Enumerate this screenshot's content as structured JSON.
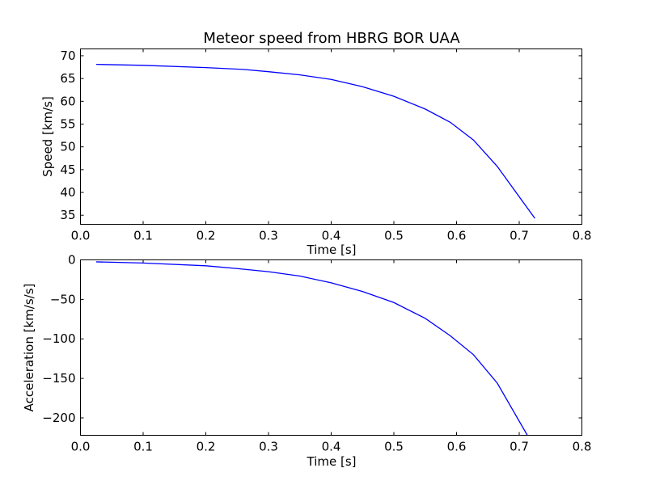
{
  "chart_data": [
    {
      "type": "line",
      "title": "Meteor speed from  HBRG BOR UAA",
      "xlabel": "Time [s]",
      "ylabel": "Speed [km/s]",
      "xlim": [
        0.0,
        0.8
      ],
      "ylim": [
        33,
        71.5
      ],
      "xticks": [
        "0.0",
        "0.1",
        "0.2",
        "0.3",
        "0.4",
        "0.5",
        "0.6",
        "0.7",
        "0.8"
      ],
      "yticks": [
        "35",
        "40",
        "45",
        "50",
        "55",
        "60",
        "65",
        "70"
      ],
      "grid": false,
      "color": "#0000ff",
      "series": [
        {
          "x": [
            0.025,
            0.1,
            0.2,
            0.26,
            0.3,
            0.35,
            0.4,
            0.45,
            0.5,
            0.55,
            0.59,
            0.627,
            0.665,
            0.725
          ],
          "values": [
            68.1,
            67.9,
            67.4,
            67.0,
            66.5,
            65.8,
            64.8,
            63.2,
            61.1,
            58.3,
            55.4,
            51.5,
            45.7,
            34.3
          ]
        }
      ]
    },
    {
      "type": "line",
      "title": "",
      "xlabel": "Time [s]",
      "ylabel": "Acceleration [km/s/s]",
      "xlim": [
        0.0,
        0.8
      ],
      "ylim": [
        -222,
        0
      ],
      "xticks": [
        "0.0",
        "0.1",
        "0.2",
        "0.3",
        "0.4",
        "0.5",
        "0.6",
        "0.7",
        "0.8"
      ],
      "yticks": [
        "0",
        "−50",
        "−100",
        "−150",
        "−200"
      ],
      "grid": false,
      "color": "#0000ff",
      "series": [
        {
          "x": [
            0.025,
            0.1,
            0.2,
            0.25,
            0.3,
            0.35,
            0.4,
            0.45,
            0.5,
            0.55,
            0.59,
            0.627,
            0.665,
            0.713
          ],
          "values": [
            -2.5,
            -4,
            -7.5,
            -11,
            -15,
            -20.5,
            -29,
            -40,
            -54,
            -74,
            -96,
            -120,
            -156,
            -222
          ]
        }
      ]
    }
  ]
}
